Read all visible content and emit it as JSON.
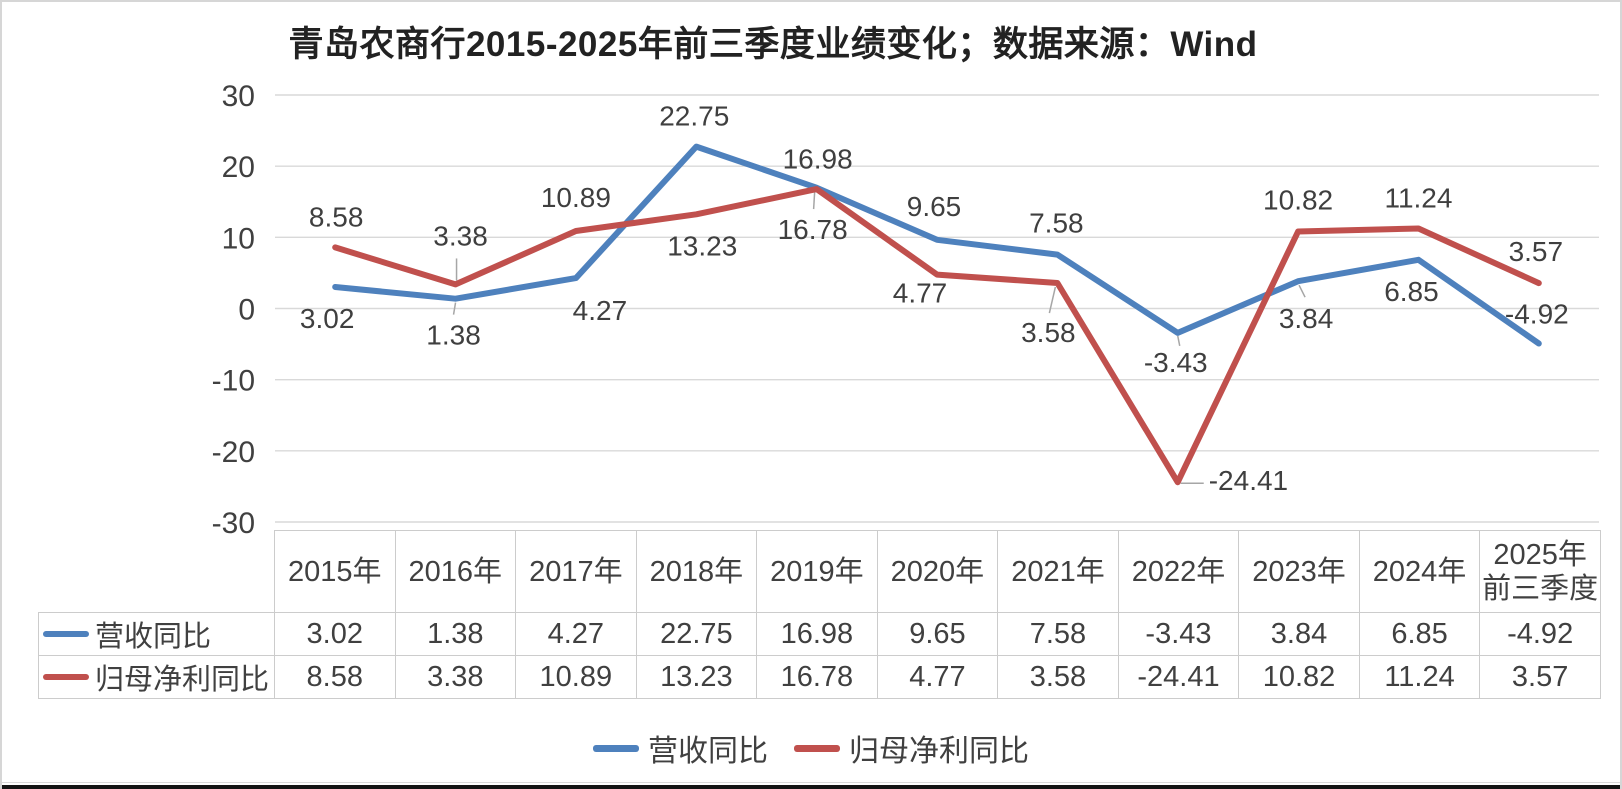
{
  "title": "青岛农商行2015-2025年前三季度业绩变化；数据来源：Wind",
  "chart_data": {
    "type": "line",
    "categories": [
      "2015年",
      "2016年",
      "2017年",
      "2018年",
      "2019年",
      "2020年",
      "2021年",
      "2022年",
      "2023年",
      "2024年",
      "2025年前三季度"
    ],
    "series": [
      {
        "name": "营收同比",
        "color": "#4e81bd",
        "values": [
          3.02,
          1.38,
          4.27,
          22.75,
          16.98,
          9.65,
          7.58,
          -3.43,
          3.84,
          6.85,
          -4.92
        ]
      },
      {
        "name": "归母净利同比",
        "color": "#c0504d",
        "values": [
          8.58,
          3.38,
          10.89,
          13.23,
          16.78,
          4.77,
          3.58,
          -24.41,
          10.82,
          11.24,
          3.57
        ]
      }
    ],
    "ylim": [
      -30,
      30
    ],
    "yticks": [
      30,
      20,
      10,
      0,
      -10,
      -20,
      -30
    ],
    "grid": true,
    "data_labels": true,
    "legend_position": "bottom",
    "table_shown": true
  },
  "colors": {
    "grid": "#d9d9d9",
    "tick_text": "#404040",
    "label_text": "#3f3f3f",
    "leader": "#a6a6a6",
    "table_border": "#cccccc"
  }
}
